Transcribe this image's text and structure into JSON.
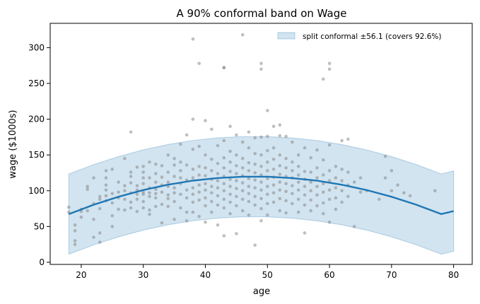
{
  "chart_data": {
    "type": "scatter",
    "title": "A 90% conformal band on Wage",
    "xlabel": "age",
    "ylabel": "wage ($1000s)",
    "xlim": [
      15,
      83
    ],
    "ylim": [
      -3,
      334
    ],
    "xticks": [
      20,
      30,
      40,
      50,
      60,
      70,
      80
    ],
    "yticks": [
      0,
      50,
      100,
      150,
      200,
      250,
      300
    ],
    "grid": false,
    "legend_position": "top-right",
    "legend": [
      "split conformal ±56.1 (covers 92.6%)"
    ],
    "band_halfwidth": 56.1,
    "colors": {
      "fit_line": "#1f77b4",
      "band_fill": "#1f77b4",
      "points": "#808080"
    },
    "fit_curve": {
      "x": [
        18,
        22,
        26,
        30,
        34,
        38,
        42,
        46,
        50,
        54,
        58,
        62,
        66,
        70,
        74,
        78,
        80
      ],
      "y": [
        67.3,
        80.4,
        91.6,
        101.0,
        108.5,
        114.1,
        117.8,
        119.6,
        119.6,
        117.7,
        114.0,
        108.4,
        100.9,
        91.6,
        80.4,
        67.4,
        71.5
      ]
    },
    "scatter": [
      [
        18,
        77
      ],
      [
        18,
        70
      ],
      [
        19,
        52
      ],
      [
        19,
        44
      ],
      [
        19,
        30
      ],
      [
        19,
        25
      ],
      [
        20,
        71
      ],
      [
        20,
        63
      ],
      [
        20,
        74
      ],
      [
        21,
        102
      ],
      [
        21,
        106
      ],
      [
        21,
        72
      ],
      [
        22,
        82
      ],
      [
        22,
        35
      ],
      [
        22,
        118
      ],
      [
        22,
        60
      ],
      [
        23,
        92
      ],
      [
        23,
        75
      ],
      [
        23,
        88
      ],
      [
        23,
        41
      ],
      [
        23,
        28
      ],
      [
        24,
        128
      ],
      [
        24,
        108
      ],
      [
        24,
        86
      ],
      [
        24,
        101
      ],
      [
        24,
        118
      ],
      [
        24,
        93
      ],
      [
        25,
        96
      ],
      [
        25,
        83
      ],
      [
        25,
        65
      ],
      [
        25,
        130
      ],
      [
        25,
        50
      ],
      [
        26,
        98
      ],
      [
        26,
        90
      ],
      [
        26,
        112
      ],
      [
        26,
        74
      ],
      [
        27,
        145
      ],
      [
        27,
        100
      ],
      [
        27,
        88
      ],
      [
        27,
        73
      ],
      [
        27,
        107
      ],
      [
        28,
        182
      ],
      [
        28,
        97
      ],
      [
        28,
        84
      ],
      [
        28,
        120
      ],
      [
        28,
        126
      ],
      [
        28,
        111
      ],
      [
        28,
        76
      ],
      [
        29,
        101
      ],
      [
        29,
        133
      ],
      [
        29,
        88
      ],
      [
        29,
        95
      ],
      [
        29,
        71
      ],
      [
        29,
        107
      ],
      [
        30,
        98
      ],
      [
        30,
        85
      ],
      [
        30,
        110
      ],
      [
        30,
        76
      ],
      [
        30,
        126
      ],
      [
        30,
        95
      ],
      [
        30,
        134
      ],
      [
        30,
        118
      ],
      [
        31,
        104
      ],
      [
        31,
        92
      ],
      [
        31,
        73
      ],
      [
        31,
        140
      ],
      [
        31,
        118
      ],
      [
        31,
        97
      ],
      [
        31,
        67
      ],
      [
        32,
        112
      ],
      [
        32,
        96
      ],
      [
        32,
        124
      ],
      [
        32,
        102
      ],
      [
        32,
        78
      ],
      [
        32,
        90
      ],
      [
        32,
        137
      ],
      [
        33,
        119
      ],
      [
        33,
        98
      ],
      [
        33,
        81
      ],
      [
        33,
        135
      ],
      [
        33,
        108
      ],
      [
        33,
        55
      ],
      [
        34,
        150
      ],
      [
        34,
        126
      ],
      [
        34,
        112
      ],
      [
        34,
        94
      ],
      [
        34,
        106
      ],
      [
        34,
        78
      ],
      [
        34,
        89
      ],
      [
        35,
        145
      ],
      [
        35,
        120
      ],
      [
        35,
        104
      ],
      [
        35,
        97
      ],
      [
        35,
        136
      ],
      [
        35,
        85
      ],
      [
        35,
        60
      ],
      [
        36,
        165
      ],
      [
        36,
        128
      ],
      [
        36,
        118
      ],
      [
        36,
        110
      ],
      [
        36,
        95
      ],
      [
        36,
        76
      ],
      [
        36,
        140
      ],
      [
        37,
        178
      ],
      [
        37,
        136
      ],
      [
        37,
        115
      ],
      [
        37,
        101
      ],
      [
        37,
        90
      ],
      [
        37,
        70
      ],
      [
        37,
        58
      ],
      [
        38,
        312
      ],
      [
        38,
        200
      ],
      [
        38,
        158
      ],
      [
        38,
        130
      ],
      [
        38,
        118
      ],
      [
        38,
        104
      ],
      [
        38,
        95
      ],
      [
        38,
        84
      ],
      [
        38,
        70
      ],
      [
        39,
        278
      ],
      [
        39,
        162
      ],
      [
        39,
        134
      ],
      [
        39,
        122
      ],
      [
        39,
        108
      ],
      [
        39,
        98
      ],
      [
        39,
        87
      ],
      [
        39,
        64
      ],
      [
        40,
        198
      ],
      [
        40,
        150
      ],
      [
        40,
        132
      ],
      [
        40,
        121
      ],
      [
        40,
        110
      ],
      [
        40,
        101
      ],
      [
        40,
        90
      ],
      [
        40,
        79
      ],
      [
        40,
        56
      ],
      [
        41,
        186
      ],
      [
        41,
        144
      ],
      [
        41,
        128
      ],
      [
        41,
        116
      ],
      [
        41,
        106
      ],
      [
        41,
        97
      ],
      [
        41,
        85
      ],
      [
        41,
        70
      ],
      [
        42,
        163
      ],
      [
        42,
        138
      ],
      [
        42,
        124
      ],
      [
        42,
        114
      ],
      [
        42,
        104
      ],
      [
        42,
        93
      ],
      [
        42,
        80
      ],
      [
        42,
        52
      ],
      [
        43,
        272
      ],
      [
        43,
        272
      ],
      [
        43,
        170
      ],
      [
        43,
        146
      ],
      [
        43,
        132
      ],
      [
        43,
        120
      ],
      [
        43,
        110
      ],
      [
        43,
        100
      ],
      [
        43,
        88
      ],
      [
        43,
        76
      ],
      [
        43,
        37
      ],
      [
        44,
        190
      ],
      [
        44,
        155
      ],
      [
        44,
        140
      ],
      [
        44,
        127
      ],
      [
        44,
        116
      ],
      [
        44,
        106
      ],
      [
        44,
        95
      ],
      [
        44,
        84
      ],
      [
        44,
        68
      ],
      [
        45,
        178
      ],
      [
        45,
        150
      ],
      [
        45,
        135
      ],
      [
        45,
        124
      ],
      [
        45,
        114
      ],
      [
        45,
        103
      ],
      [
        45,
        92
      ],
      [
        45,
        79
      ],
      [
        45,
        40
      ],
      [
        46,
        318
      ],
      [
        46,
        168
      ],
      [
        46,
        145
      ],
      [
        46,
        132
      ],
      [
        46,
        121
      ],
      [
        46,
        111
      ],
      [
        46,
        100
      ],
      [
        46,
        88
      ],
      [
        46,
        72
      ],
      [
        47,
        182
      ],
      [
        47,
        160
      ],
      [
        47,
        139
      ],
      [
        47,
        128
      ],
      [
        47,
        117
      ],
      [
        47,
        106
      ],
      [
        47,
        96
      ],
      [
        47,
        85
      ],
      [
        47,
        66
      ],
      [
        48,
        174
      ],
      [
        48,
        152
      ],
      [
        48,
        137
      ],
      [
        48,
        125
      ],
      [
        48,
        115
      ],
      [
        48,
        104
      ],
      [
        48,
        92
      ],
      [
        48,
        80
      ],
      [
        48,
        24
      ],
      [
        49,
        278
      ],
      [
        49,
        270
      ],
      [
        49,
        175
      ],
      [
        49,
        150
      ],
      [
        49,
        134
      ],
      [
        49,
        122
      ],
      [
        49,
        112
      ],
      [
        49,
        101
      ],
      [
        49,
        89
      ],
      [
        49,
        75
      ],
      [
        49,
        58
      ],
      [
        50,
        212
      ],
      [
        50,
        176
      ],
      [
        50,
        156
      ],
      [
        50,
        140
      ],
      [
        50,
        128
      ],
      [
        50,
        117
      ],
      [
        50,
        106
      ],
      [
        50,
        95
      ],
      [
        50,
        82
      ],
      [
        50,
        66
      ],
      [
        51,
        190
      ],
      [
        51,
        160
      ],
      [
        51,
        144
      ],
      [
        51,
        130
      ],
      [
        51,
        119
      ],
      [
        51,
        108
      ],
      [
        51,
        97
      ],
      [
        51,
        84
      ],
      [
        52,
        192
      ],
      [
        52,
        177
      ],
      [
        52,
        150
      ],
      [
        52,
        135
      ],
      [
        52,
        123
      ],
      [
        52,
        112
      ],
      [
        52,
        101
      ],
      [
        52,
        89
      ],
      [
        52,
        72
      ],
      [
        53,
        176
      ],
      [
        53,
        145
      ],
      [
        53,
        132
      ],
      [
        53,
        120
      ],
      [
        53,
        110
      ],
      [
        53,
        99
      ],
      [
        53,
        86
      ],
      [
        53,
        69
      ],
      [
        54,
        168
      ],
      [
        54,
        140
      ],
      [
        54,
        128
      ],
      [
        54,
        118
      ],
      [
        54,
        107
      ],
      [
        54,
        96
      ],
      [
        54,
        82
      ],
      [
        55,
        150
      ],
      [
        55,
        134
      ],
      [
        55,
        122
      ],
      [
        55,
        112
      ],
      [
        55,
        101
      ],
      [
        55,
        88
      ],
      [
        55,
        70
      ],
      [
        56,
        160
      ],
      [
        56,
        127
      ],
      [
        56,
        116
      ],
      [
        56,
        106
      ],
      [
        56,
        94
      ],
      [
        56,
        80
      ],
      [
        56,
        41
      ],
      [
        57,
        146
      ],
      [
        57,
        126
      ],
      [
        57,
        112
      ],
      [
        57,
        100
      ],
      [
        57,
        87
      ],
      [
        57,
        72
      ],
      [
        58,
        157
      ],
      [
        58,
        132
      ],
      [
        58,
        118
      ],
      [
        58,
        106
      ],
      [
        58,
        94
      ],
      [
        58,
        79
      ],
      [
        59,
        256
      ],
      [
        59,
        143
      ],
      [
        59,
        122
      ],
      [
        59,
        110
      ],
      [
        59,
        98
      ],
      [
        59,
        83
      ],
      [
        59,
        68
      ],
      [
        60,
        278
      ],
      [
        60,
        270
      ],
      [
        60,
        164
      ],
      [
        60,
        128
      ],
      [
        60,
        114
      ],
      [
        60,
        101
      ],
      [
        60,
        88
      ],
      [
        60,
        56
      ],
      [
        61,
        134
      ],
      [
        61,
        118
      ],
      [
        61,
        104
      ],
      [
        61,
        90
      ],
      [
        61,
        74
      ],
      [
        62,
        170
      ],
      [
        62,
        130
      ],
      [
        62,
        114
      ],
      [
        62,
        100
      ],
      [
        62,
        84
      ],
      [
        63,
        172
      ],
      [
        63,
        126
      ],
      [
        63,
        108
      ],
      [
        63,
        92
      ],
      [
        64,
        112
      ],
      [
        64,
        50
      ],
      [
        65,
        118
      ],
      [
        65,
        98
      ],
      [
        66,
        100
      ],
      [
        68,
        88
      ],
      [
        69,
        148
      ],
      [
        69,
        118
      ],
      [
        70,
        128
      ],
      [
        70,
        100
      ],
      [
        71,
        108
      ],
      [
        72,
        97
      ],
      [
        73,
        93
      ],
      [
        77,
        100
      ]
    ]
  }
}
